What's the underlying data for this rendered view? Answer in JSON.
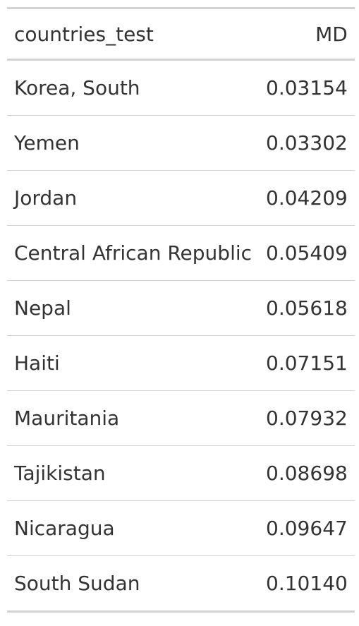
{
  "table": {
    "columns": [
      "countries_test",
      "MD"
    ],
    "rows": [
      {
        "country": "Korea, South",
        "md": "0.03154"
      },
      {
        "country": "Yemen",
        "md": "0.03302"
      },
      {
        "country": "Jordan",
        "md": "0.04209"
      },
      {
        "country": "Central African Republic",
        "md": "0.05409"
      },
      {
        "country": "Nepal",
        "md": "0.05618"
      },
      {
        "country": "Haiti",
        "md": "0.07151"
      },
      {
        "country": "Mauritania",
        "md": "0.07932"
      },
      {
        "country": "Tajikistan",
        "md": "0.08698"
      },
      {
        "country": "Nicaragua",
        "md": "0.09647"
      },
      {
        "country": "South Sudan",
        "md": "0.10140"
      }
    ]
  },
  "colors": {
    "text": "#333333",
    "rule": "#d3d3d3"
  }
}
